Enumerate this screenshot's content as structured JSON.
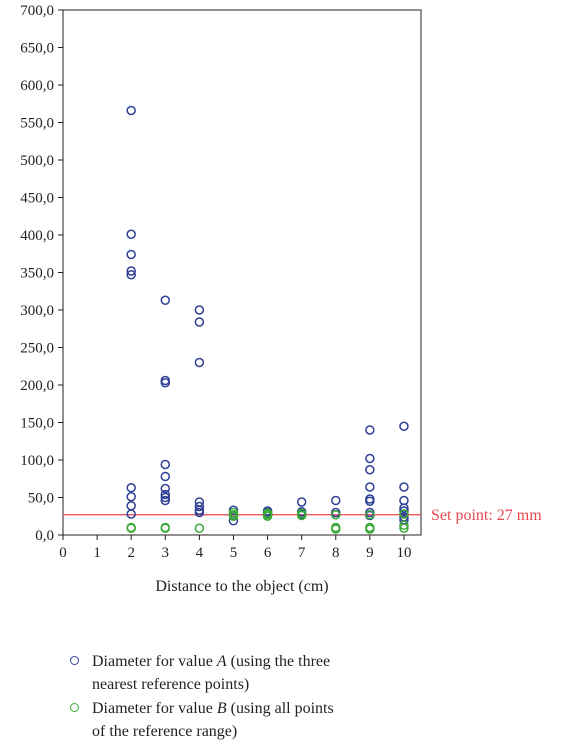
{
  "chart_data": {
    "type": "scatter",
    "xlabel": "Distance to the object (cm)",
    "ylabel": "",
    "xlim": [
      0,
      10.5
    ],
    "ylim": [
      0,
      700
    ],
    "x_ticks": [
      "0",
      "1",
      "2",
      "3",
      "4",
      "5",
      "6",
      "7",
      "8",
      "9",
      "10"
    ],
    "y_ticks": [
      "0,0",
      "50,0",
      "100,0",
      "150,0",
      "200,0",
      "250,0",
      "300,0",
      "350,0",
      "400,0",
      "450,0",
      "500,0",
      "550,0",
      "600,0",
      "650,0",
      "700,0"
    ],
    "series": [
      {
        "name": "Diameter for value A (using the three nearest reference points)",
        "name_italic": "A",
        "color": "#2e3f95",
        "points": [
          [
            2,
            566
          ],
          [
            2,
            401
          ],
          [
            2,
            374
          ],
          [
            2,
            352
          ],
          [
            2,
            347
          ],
          [
            2,
            63
          ],
          [
            2,
            51
          ],
          [
            2,
            39
          ],
          [
            2,
            28
          ],
          [
            3,
            313
          ],
          [
            3,
            206
          ],
          [
            3,
            203
          ],
          [
            3,
            94
          ],
          [
            3,
            78
          ],
          [
            3,
            62
          ],
          [
            3,
            54
          ],
          [
            3,
            50
          ],
          [
            3,
            46
          ],
          [
            4,
            300
          ],
          [
            4,
            284
          ],
          [
            4,
            230
          ],
          [
            4,
            44
          ],
          [
            4,
            38
          ],
          [
            4,
            33
          ],
          [
            4,
            30
          ],
          [
            5,
            33
          ],
          [
            5,
            26
          ],
          [
            5,
            19
          ],
          [
            6,
            32
          ],
          [
            6,
            30
          ],
          [
            6,
            28
          ],
          [
            7,
            44
          ],
          [
            7,
            31
          ],
          [
            7,
            28
          ],
          [
            8,
            46
          ],
          [
            8,
            30
          ],
          [
            8,
            27
          ],
          [
            9,
            140
          ],
          [
            9,
            102
          ],
          [
            9,
            87
          ],
          [
            9,
            64
          ],
          [
            9,
            48
          ],
          [
            9,
            45
          ],
          [
            9,
            30
          ],
          [
            9,
            26
          ],
          [
            10,
            145
          ],
          [
            10,
            64
          ],
          [
            10,
            46
          ],
          [
            10,
            36
          ],
          [
            10,
            32
          ],
          [
            10,
            28
          ],
          [
            10,
            24
          ],
          [
            10,
            20
          ]
        ]
      },
      {
        "name": "Diameter for value B (using all points of the reference range)",
        "name_italic": "B",
        "color": "#3aa935",
        "points": [
          [
            2,
            10
          ],
          [
            2,
            9
          ],
          [
            3,
            10
          ],
          [
            3,
            9
          ],
          [
            4,
            9
          ],
          [
            5,
            30
          ],
          [
            5,
            27
          ],
          [
            5,
            25
          ],
          [
            6,
            29
          ],
          [
            6,
            27
          ],
          [
            6,
            25
          ],
          [
            7,
            29
          ],
          [
            7,
            26
          ],
          [
            8,
            27
          ],
          [
            8,
            10
          ],
          [
            8,
            8
          ],
          [
            9,
            27
          ],
          [
            9,
            10
          ],
          [
            9,
            8
          ],
          [
            10,
            28
          ],
          [
            10,
            13
          ],
          [
            10,
            9
          ]
        ]
      }
    ],
    "reference_line": {
      "y": 27,
      "label": "Set point: 27 mm",
      "color": "#e8474e"
    }
  }
}
